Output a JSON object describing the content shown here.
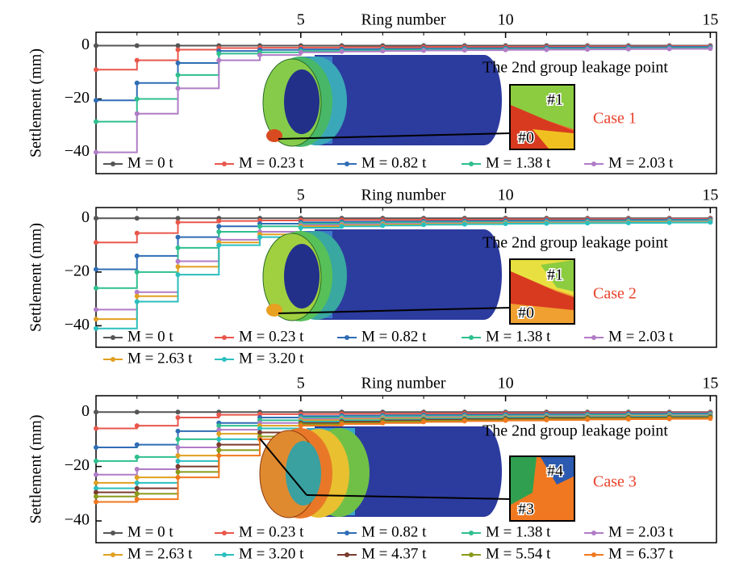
{
  "chart_data": [
    {
      "type": "line",
      "xlabel": "Ring number",
      "ylabel": "Settlement (mm)",
      "x": [
        0,
        1,
        2,
        3,
        4,
        5,
        6,
        7,
        8,
        9,
        10,
        11,
        12,
        13,
        14,
        15
      ],
      "xlim": [
        0,
        15.15
      ],
      "xticks": [
        5,
        10,
        15
      ],
      "ylim": [
        -48,
        5
      ],
      "yticks": [
        0,
        {
          "value": -20,
          "label": "−20"
        },
        {
          "value": -40,
          "label": "−40"
        }
      ],
      "annotations": [
        "The 2nd group leakage point",
        "Case 1",
        "#1",
        "#0"
      ],
      "series": [
        {
          "name": "M = 0 t",
          "color": "#555555",
          "values": [
            0,
            0,
            0,
            0,
            0,
            0,
            0,
            0,
            0,
            0,
            0,
            0,
            0,
            0,
            0,
            0
          ]
        },
        {
          "name": "M = 0.23 t",
          "color": "#e8574c",
          "values": [
            -9,
            -5.5,
            -1.5,
            -0.9,
            -0.8,
            -0.7,
            -0.6,
            -0.6,
            -0.5,
            -0.5,
            -0.4,
            -0.4,
            -0.3,
            -0.3,
            -0.2,
            -0.2
          ]
        },
        {
          "name": "M = 0.82 t",
          "color": "#2f6db5",
          "values": [
            -20.5,
            -14,
            -6.5,
            -2,
            -1.6,
            -1.4,
            -1.3,
            -1.2,
            -1.1,
            -1,
            -0.9,
            -0.8,
            -0.7,
            -0.6,
            -0.5,
            -0.5
          ]
        },
        {
          "name": "M = 1.38 t",
          "color": "#2fbf8f",
          "values": [
            -28.5,
            -20,
            -11,
            -3,
            -2.5,
            -2,
            -1.8,
            -1.6,
            -1.5,
            -1.4,
            -1.3,
            -1.2,
            -1.1,
            -1,
            -0.9,
            -0.8
          ]
        },
        {
          "name": "M = 2.03 t",
          "color": "#b07cc6",
          "values": [
            -40,
            -25.5,
            -16,
            -5.5,
            -3.5,
            -2.5,
            -2.2,
            -2,
            -1.8,
            -1.7,
            -1.6,
            -1.5,
            -1.4,
            -1.3,
            -1.2,
            -1.1
          ]
        }
      ]
    },
    {
      "type": "line",
      "xlabel": "Ring number",
      "ylabel": "Settlement (mm)",
      "x": [
        0,
        1,
        2,
        3,
        4,
        5,
        6,
        7,
        8,
        9,
        10,
        11,
        12,
        13,
        14,
        15
      ],
      "xlim": [
        0,
        15.15
      ],
      "xticks": [
        5,
        10,
        15
      ],
      "ylim": [
        -48,
        4
      ],
      "yticks": [
        0,
        {
          "value": -20,
          "label": "−20"
        },
        {
          "value": -40,
          "label": "−40"
        }
      ],
      "annotations": [
        "The 2nd group leakage point",
        "Case 2",
        "#1",
        "#0"
      ],
      "series": [
        {
          "name": "M = 0 t",
          "color": "#555555",
          "values": [
            0,
            0,
            0,
            0,
            0,
            0,
            0,
            0,
            0,
            0,
            0,
            0,
            0,
            0,
            0,
            0
          ]
        },
        {
          "name": "M = 0.23 t",
          "color": "#e8574c",
          "values": [
            -9,
            -5.5,
            -1.5,
            -1,
            -0.8,
            -0.7,
            -0.6,
            -0.6,
            -0.5,
            -0.5,
            -0.4,
            -0.4,
            -0.3,
            -0.3,
            -0.2,
            -0.2
          ]
        },
        {
          "name": "M = 0.82 t",
          "color": "#2f6db5",
          "values": [
            -19,
            -14,
            -7,
            -3,
            -2,
            -1.5,
            -1.3,
            -1.2,
            -1.1,
            -1,
            -0.9,
            -0.8,
            -0.7,
            -0.6,
            -0.5,
            -0.5
          ]
        },
        {
          "name": "M = 1.38 t",
          "color": "#2fbf8f",
          "values": [
            -26,
            -20,
            -11,
            -5,
            -3,
            -2,
            -1.8,
            -1.6,
            -1.5,
            -1.4,
            -1.3,
            -1.2,
            -1.1,
            -1,
            -0.9,
            -0.8
          ]
        },
        {
          "name": "M = 2.03 t",
          "color": "#b07cc6",
          "values": [
            -34,
            -27.5,
            -16,
            -8,
            -5,
            -2.5,
            -2.2,
            -2,
            -1.8,
            -1.7,
            -1.6,
            -1.5,
            -1.4,
            -1.3,
            -1.2,
            -1.1
          ]
        },
        {
          "name": "M = 2.63 t",
          "color": "#e0a020",
          "values": [
            -37.5,
            -29,
            -18,
            -9,
            -6,
            -3,
            -2.6,
            -2.3,
            -2.1,
            -1.9,
            -1.8,
            -1.7,
            -1.6,
            -1.5,
            -1.4,
            -1.3
          ]
        },
        {
          "name": "M = 3.20 t",
          "color": "#2bbfbf",
          "values": [
            -41,
            -31,
            -21,
            -10,
            -7,
            -3.5,
            -3,
            -2.7,
            -2.4,
            -2.2,
            -2,
            -1.9,
            -1.8,
            -1.7,
            -1.6,
            -1.5
          ]
        }
      ]
    },
    {
      "type": "line",
      "xlabel": "Ring number",
      "ylabel": "Settlement (mm)",
      "x": [
        0,
        1,
        2,
        3,
        4,
        5,
        6,
        7,
        8,
        9,
        10,
        11,
        12,
        13,
        14,
        15
      ],
      "xlim": [
        0,
        15.15
      ],
      "xticks": [
        5,
        10,
        15
      ],
      "ylim": [
        -48,
        6
      ],
      "yticks": [
        0,
        {
          "value": -20,
          "label": "−20"
        },
        {
          "value": -40,
          "label": "−40"
        }
      ],
      "annotations": [
        "The 2nd group leakage point",
        "Case 3",
        "#4",
        "#3"
      ],
      "series": [
        {
          "name": "M = 0 t",
          "color": "#555555",
          "values": [
            0,
            0,
            0,
            0,
            0,
            0,
            0,
            0,
            0,
            0,
            0,
            0,
            0,
            0,
            0,
            0
          ]
        },
        {
          "name": "M = 0.23 t",
          "color": "#e8574c",
          "values": [
            -6,
            -5,
            -2,
            -1,
            -0.8,
            -0.7,
            -0.6,
            -0.6,
            -0.5,
            -0.5,
            -0.4,
            -0.4,
            -0.3,
            -0.3,
            -0.2,
            -0.2
          ]
        },
        {
          "name": "M = 0.82 t",
          "color": "#2f6db5",
          "values": [
            -13,
            -12,
            -7,
            -4,
            -2,
            -1.5,
            -1.3,
            -1.2,
            -1.1,
            -1,
            -0.9,
            -0.8,
            -0.7,
            -0.6,
            -0.5,
            -0.5
          ]
        },
        {
          "name": "M = 1.38 t",
          "color": "#2fbf8f",
          "values": [
            -18,
            -16.5,
            -10,
            -5,
            -3,
            -2,
            -1.8,
            -1.6,
            -1.5,
            -1.4,
            -1.3,
            -1.2,
            -1.1,
            -1,
            -0.9,
            -0.8
          ]
        },
        {
          "name": "M = 2.03 t",
          "color": "#b07cc6",
          "values": [
            -23,
            -21,
            -13,
            -6.5,
            -4,
            -2.5,
            -2.2,
            -2,
            -1.8,
            -1.7,
            -1.6,
            -1.5,
            -1.4,
            -1.3,
            -1.2,
            -1.1
          ]
        },
        {
          "name": "M = 2.63 t",
          "color": "#e0a020",
          "values": [
            -26,
            -24,
            -16,
            -8,
            -5,
            -3,
            -2.6,
            -2.3,
            -2.1,
            -1.9,
            -1.8,
            -1.7,
            -1.6,
            -1.5,
            -1.4,
            -1.3
          ]
        },
        {
          "name": "M = 3.20 t",
          "color": "#2bbfbf",
          "values": [
            -28,
            -26,
            -18,
            -10,
            -6,
            -3.5,
            -3,
            -2.7,
            -2.4,
            -2.2,
            -2,
            -1.9,
            -1.8,
            -1.7,
            -1.6,
            -1.5
          ]
        },
        {
          "name": "M = 4.37 t",
          "color": "#7a3b2e",
          "values": [
            -29.5,
            -28,
            -20,
            -12,
            -7.5,
            -4,
            -3.5,
            -3.1,
            -2.8,
            -2.6,
            -2.4,
            -2.2,
            -2.1,
            -2,
            -1.9,
            -1.8
          ]
        },
        {
          "name": "M = 5.54 t",
          "color": "#8a9a1a",
          "values": [
            -31,
            -30,
            -22,
            -14,
            -9,
            -4.5,
            -4,
            -3.5,
            -3.2,
            -3,
            -2.8,
            -2.6,
            -2.4,
            -2.3,
            -2.2,
            -2.1
          ]
        },
        {
          "name": "M = 6.37 t",
          "color": "#f07820",
          "values": [
            -33,
            -32,
            -24,
            -16,
            -10,
            -5,
            -4.4,
            -4,
            -3.6,
            -3.3,
            -3.1,
            -2.9,
            -2.7,
            -2.6,
            -2.5,
            -2.4
          ]
        }
      ]
    }
  ]
}
